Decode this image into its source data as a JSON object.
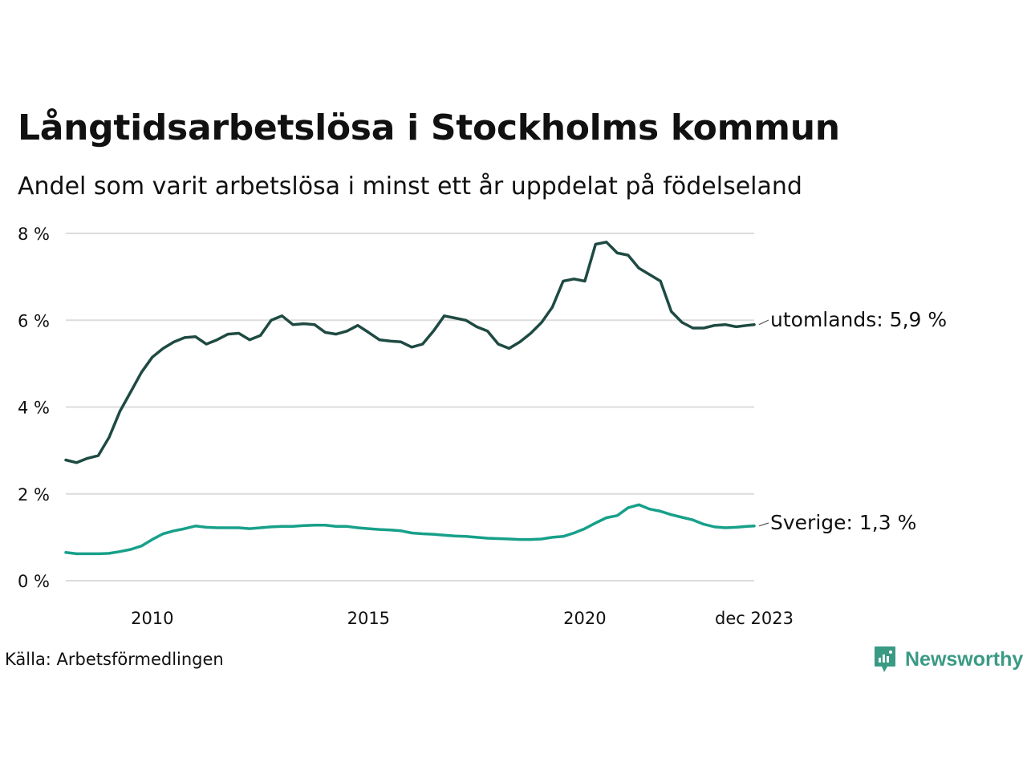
{
  "chart_data": {
    "type": "line",
    "title": "Långtidsarbetslösa i Stockholms kommun",
    "subtitle": "Andel som varit arbetslösa i minst ett år uppdelat på födelseland",
    "y_ticks": [
      "0 %",
      "2 %",
      "4 %",
      "6 %",
      "8 %"
    ],
    "y_tick_values": [
      0,
      2,
      4,
      6,
      8
    ],
    "ylim": [
      0,
      8
    ],
    "x_ticks": [
      "2010",
      "2015",
      "2020",
      "dec 2023"
    ],
    "x_tick_values": [
      2010.0,
      2015.0,
      2020.0,
      2023.917
    ],
    "x_range": [
      2008.0,
      2023.917
    ],
    "x_unit": "year (fractional, monthly data)",
    "series": [
      {
        "name": "utomlands",
        "label": "utomlands: 5,9 %",
        "color": "#1e4a42",
        "x": [
          2008.0,
          2008.25,
          2008.5,
          2008.75,
          2009.0,
          2009.25,
          2009.5,
          2009.75,
          2010.0,
          2010.25,
          2010.5,
          2010.75,
          2011.0,
          2011.25,
          2011.5,
          2011.75,
          2012.0,
          2012.25,
          2012.5,
          2012.75,
          2013.0,
          2013.25,
          2013.5,
          2013.75,
          2014.0,
          2014.25,
          2014.5,
          2014.75,
          2015.0,
          2015.25,
          2015.5,
          2015.75,
          2016.0,
          2016.25,
          2016.5,
          2016.75,
          2017.0,
          2017.25,
          2017.5,
          2017.75,
          2018.0,
          2018.25,
          2018.5,
          2018.75,
          2019.0,
          2019.25,
          2019.5,
          2019.75,
          2020.0,
          2020.25,
          2020.5,
          2020.75,
          2021.0,
          2021.25,
          2021.5,
          2021.75,
          2022.0,
          2022.25,
          2022.5,
          2022.75,
          2023.0,
          2023.25,
          2023.5,
          2023.75,
          2023.917
        ],
        "values": [
          2.78,
          2.72,
          2.82,
          2.88,
          3.3,
          3.9,
          4.35,
          4.8,
          5.15,
          5.35,
          5.5,
          5.6,
          5.62,
          5.45,
          5.55,
          5.68,
          5.7,
          5.55,
          5.65,
          6.0,
          6.1,
          5.9,
          5.92,
          5.9,
          5.72,
          5.68,
          5.75,
          5.88,
          5.72,
          5.55,
          5.52,
          5.5,
          5.38,
          5.45,
          5.75,
          6.1,
          6.05,
          6.0,
          5.85,
          5.75,
          5.45,
          5.35,
          5.5,
          5.7,
          5.95,
          6.3,
          6.9,
          6.95,
          6.9,
          7.75,
          7.8,
          7.55,
          7.5,
          7.2,
          7.05,
          6.9,
          6.2,
          5.95,
          5.82,
          5.82,
          5.88,
          5.9,
          5.85,
          5.88,
          5.9
        ]
      },
      {
        "name": "Sverige",
        "label": "Sverige: 1,3 %",
        "color": "#17a08a",
        "x": [
          2008.0,
          2008.25,
          2008.5,
          2008.75,
          2009.0,
          2009.25,
          2009.5,
          2009.75,
          2010.0,
          2010.25,
          2010.5,
          2010.75,
          2011.0,
          2011.25,
          2011.5,
          2011.75,
          2012.0,
          2012.25,
          2012.5,
          2012.75,
          2013.0,
          2013.25,
          2013.5,
          2013.75,
          2014.0,
          2014.25,
          2014.5,
          2014.75,
          2015.0,
          2015.25,
          2015.5,
          2015.75,
          2016.0,
          2016.25,
          2016.5,
          2016.75,
          2017.0,
          2017.25,
          2017.5,
          2017.75,
          2018.0,
          2018.25,
          2018.5,
          2018.75,
          2019.0,
          2019.25,
          2019.5,
          2019.75,
          2020.0,
          2020.25,
          2020.5,
          2020.75,
          2021.0,
          2021.25,
          2021.5,
          2021.75,
          2022.0,
          2022.25,
          2022.5,
          2022.75,
          2023.0,
          2023.25,
          2023.5,
          2023.75,
          2023.917
        ],
        "values": [
          0.65,
          0.62,
          0.62,
          0.62,
          0.63,
          0.67,
          0.72,
          0.8,
          0.95,
          1.08,
          1.15,
          1.2,
          1.26,
          1.23,
          1.22,
          1.22,
          1.22,
          1.2,
          1.22,
          1.24,
          1.25,
          1.25,
          1.27,
          1.28,
          1.28,
          1.25,
          1.25,
          1.22,
          1.2,
          1.18,
          1.17,
          1.15,
          1.1,
          1.08,
          1.07,
          1.05,
          1.03,
          1.02,
          1.0,
          0.98,
          0.97,
          0.96,
          0.95,
          0.95,
          0.96,
          1.0,
          1.02,
          1.1,
          1.2,
          1.33,
          1.45,
          1.5,
          1.68,
          1.75,
          1.65,
          1.6,
          1.52,
          1.46,
          1.4,
          1.3,
          1.24,
          1.22,
          1.23,
          1.25,
          1.26
        ]
      }
    ],
    "source": "Källa: Arbetsförmedlingen",
    "brand": "Newsworthy"
  }
}
